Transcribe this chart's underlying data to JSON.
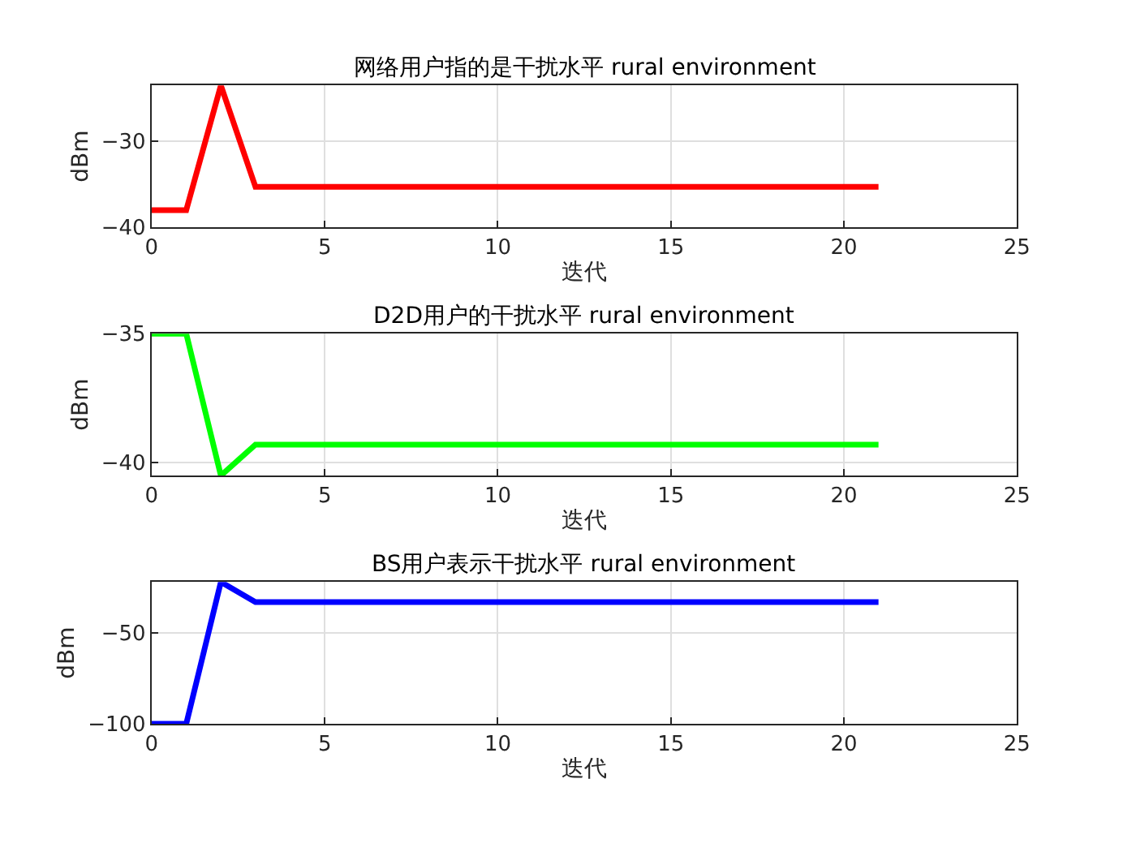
{
  "chart_data": [
    {
      "type": "line",
      "title": "网络用户指的是干扰水平 rural environment",
      "xlabel": "迭代",
      "ylabel": "dBm",
      "x": [
        0,
        1,
        2,
        3,
        4,
        5,
        6,
        7,
        8,
        9,
        10,
        11,
        12,
        13,
        14,
        15,
        16,
        17,
        18,
        19,
        20,
        21
      ],
      "xlim": [
        0,
        25
      ],
      "xticks": [
        0,
        5,
        10,
        15,
        20,
        25
      ],
      "ylim": [
        -40,
        -23.5
      ],
      "yticks": [
        -40,
        -30
      ],
      "grid": true,
      "series": [
        {
          "color": "#ff0000",
          "values": [
            -38,
            -38,
            -23.5,
            -35.3,
            -35.3,
            -35.3,
            -35.3,
            -35.3,
            -35.3,
            -35.3,
            -35.3,
            -35.3,
            -35.3,
            -35.3,
            -35.3,
            -35.3,
            -35.3,
            -35.3,
            -35.3,
            -35.3,
            -35.3,
            -35.3
          ]
        }
      ]
    },
    {
      "type": "line",
      "title": "D2D用户的干扰水平 rural environment",
      "xlabel": "迭代",
      "ylabel": "dBm",
      "x": [
        0,
        1,
        2,
        3,
        4,
        5,
        6,
        7,
        8,
        9,
        10,
        11,
        12,
        13,
        14,
        15,
        16,
        17,
        18,
        19,
        20,
        21
      ],
      "xlim": [
        0,
        25
      ],
      "xticks": [
        0,
        5,
        10,
        15,
        20,
        25
      ],
      "ylim": [
        -40.5,
        -35
      ],
      "yticks": [
        -40,
        -35
      ],
      "grid": true,
      "series": [
        {
          "color": "#00ff00",
          "values": [
            -35,
            -35,
            -40.5,
            -39.3,
            -39.3,
            -39.3,
            -39.3,
            -39.3,
            -39.3,
            -39.3,
            -39.3,
            -39.3,
            -39.3,
            -39.3,
            -39.3,
            -39.3,
            -39.3,
            -39.3,
            -39.3,
            -39.3,
            -39.3,
            -39.3
          ]
        }
      ]
    },
    {
      "type": "line",
      "title": "BS用户表示干扰水平 rural environment",
      "xlabel": "迭代",
      "ylabel": "dBm",
      "x": [
        0,
        1,
        2,
        3,
        4,
        5,
        6,
        7,
        8,
        9,
        10,
        11,
        12,
        13,
        14,
        15,
        16,
        17,
        18,
        19,
        20,
        21
      ],
      "xlim": [
        0,
        25
      ],
      "xticks": [
        0,
        5,
        10,
        15,
        20,
        25
      ],
      "ylim": [
        -100,
        -22
      ],
      "yticks": [
        -100,
        -50
      ],
      "grid": true,
      "series": [
        {
          "color": "#0000ff",
          "values": [
            -100,
            -100,
            -22,
            -33,
            -33,
            -33,
            -33,
            -33,
            -33,
            -33,
            -33,
            -33,
            -33,
            -33,
            -33,
            -33,
            -33,
            -33,
            -33,
            -33,
            -33,
            -33
          ]
        }
      ]
    }
  ]
}
